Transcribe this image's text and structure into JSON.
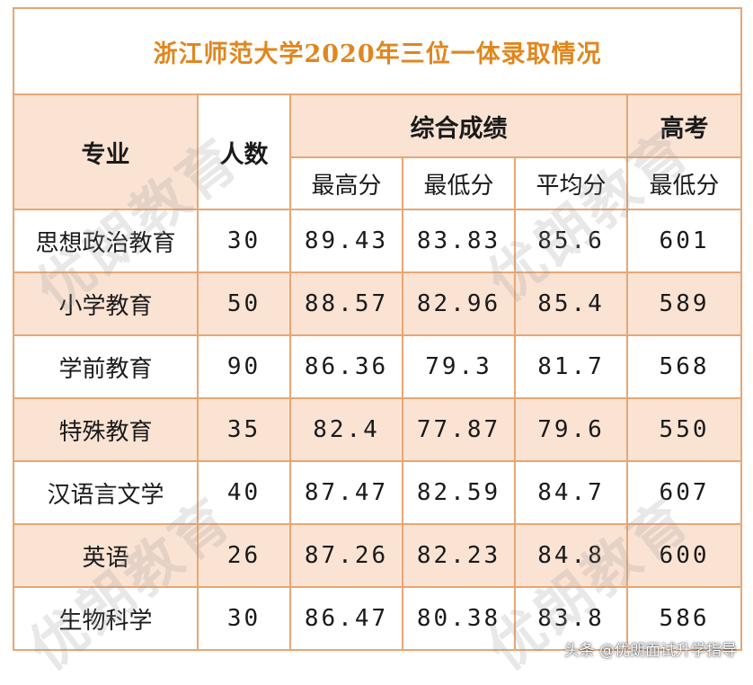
{
  "colors": {
    "title_text": "#e0861e",
    "border": "#e8a673",
    "shade": "#fbe3d4"
  },
  "table": {
    "title": "浙江师范大学2020年三位一体录取情况",
    "headers": {
      "major": "专业",
      "count": "人数",
      "composite": "综合成绩",
      "gaokao": "高考",
      "max": "最高分",
      "min": "最低分",
      "avg": "平均分",
      "gaokao_min": "最低分"
    },
    "rows": [
      {
        "major": "思想政治教育",
        "count": "30",
        "max": "89.43",
        "min": "83.83",
        "avg": "85.6",
        "gaokao_min": "601"
      },
      {
        "major": "小学教育",
        "count": "50",
        "max": "88.57",
        "min": "82.96",
        "avg": "85.4",
        "gaokao_min": "589"
      },
      {
        "major": "学前教育",
        "count": "90",
        "max": "86.36",
        "min": "79.3",
        "avg": "81.7",
        "gaokao_min": "568"
      },
      {
        "major": "特殊教育",
        "count": "35",
        "max": "82.4",
        "min": "77.87",
        "avg": "79.6",
        "gaokao_min": "550"
      },
      {
        "major": "汉语言文学",
        "count": "40",
        "max": "87.47",
        "min": "82.59",
        "avg": "84.7",
        "gaokao_min": "607"
      },
      {
        "major": "英语",
        "count": "26",
        "max": "87.26",
        "min": "82.23",
        "avg": "84.8",
        "gaokao_min": "600"
      },
      {
        "major": "生物科学",
        "count": "30",
        "max": "86.47",
        "min": "80.38",
        "avg": "83.8",
        "gaokao_min": "586"
      }
    ]
  },
  "watermark": {
    "text": "优朗教育"
  },
  "credit": {
    "text": "头条 @优朗面试升学指导"
  }
}
